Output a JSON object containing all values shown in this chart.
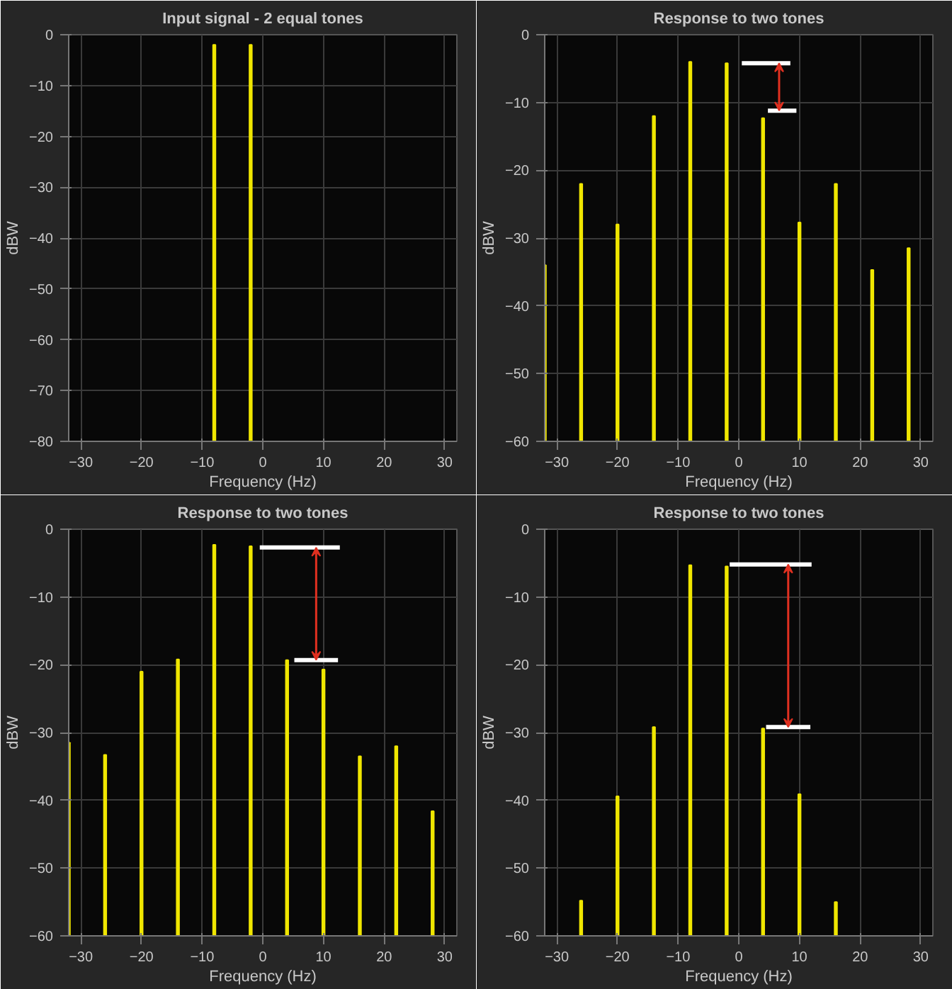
{
  "chart_data": [
    {
      "type": "bar",
      "title": "Input signal - 2 equal tones",
      "xlabel": "Frequency (Hz)",
      "ylabel": "dBW",
      "xlim": [
        -32,
        32
      ],
      "ylim": [
        -80,
        0
      ],
      "xticks": [
        -30,
        -20,
        -10,
        0,
        10,
        20,
        30
      ],
      "yticks": [
        -80,
        -70,
        -60,
        -50,
        -40,
        -30,
        -20,
        -10,
        0
      ],
      "grid": true,
      "series": [
        {
          "color": "#f0e600",
          "x": [
            -8,
            -2
          ],
          "base": [
            -80,
            -80
          ],
          "values": [
            78,
            78
          ]
        }
      ]
    },
    {
      "type": "bar",
      "title": "Response to two tones",
      "xlabel": "Frequency (Hz)",
      "ylabel": "dBW",
      "xlim": [
        -32,
        32
      ],
      "ylim": [
        -60,
        0
      ],
      "xticks": [
        -30,
        -20,
        -10,
        0,
        10,
        20,
        30
      ],
      "yticks": [
        -60,
        -50,
        -40,
        -30,
        -20,
        -10,
        0
      ],
      "grid": true,
      "series": [
        {
          "color": "#f0e600",
          "x": [
            -32,
            -26,
            -20,
            -14,
            -8,
            -2,
            4,
            10,
            16,
            22,
            28
          ],
          "base": [
            -60,
            -60,
            -60,
            -60,
            -60,
            -60,
            -60,
            -60,
            -60,
            -60,
            -60
          ],
          "values": [
            26,
            38,
            32,
            48,
            56,
            55.8,
            47.7,
            32.3,
            38,
            25.3,
            28.5
          ]
        },
        {
          "type": "line",
          "color": "#ffffff",
          "x": [
            0.5,
            8.5
          ],
          "values": [
            -4.2,
            -4.2
          ]
        },
        {
          "type": "line",
          "color": "#ffffff",
          "x": [
            4.8,
            9.5
          ],
          "values": [
            -11.2,
            -11.2
          ]
        }
      ]
    },
    {
      "type": "bar",
      "title": "Response to two tones",
      "xlabel": "Frequency (Hz)",
      "ylabel": "dBW",
      "xlim": [
        -32,
        32
      ],
      "ylim": [
        -60,
        0
      ],
      "xticks": [
        -30,
        -20,
        -10,
        0,
        10,
        20,
        30
      ],
      "yticks": [
        -60,
        -50,
        -40,
        -30,
        -20,
        -10,
        0
      ],
      "grid": true,
      "series": [
        {
          "color": "#f0e600",
          "x": [
            -32,
            -26,
            -20,
            -14,
            -8,
            -2,
            4,
            10,
            16,
            22,
            28
          ],
          "base": [
            -60,
            -60,
            -60,
            -60,
            -60,
            -60,
            -60,
            -60,
            -60,
            -60,
            -60
          ],
          "values": [
            28.5,
            26.7,
            39,
            40.8,
            57.7,
            57.5,
            40.7,
            39.3,
            26.5,
            28,
            18.4
          ]
        },
        {
          "type": "line",
          "color": "#ffffff",
          "x": [
            -0.5,
            12.7
          ],
          "values": [
            -2.7,
            -2.7
          ]
        },
        {
          "type": "line",
          "color": "#ffffff",
          "x": [
            5.2,
            12.4
          ],
          "values": [
            -19.3,
            -19.3
          ]
        }
      ]
    },
    {
      "type": "bar",
      "title": "Response to two tones",
      "xlabel": "Frequency (Hz)",
      "ylabel": "dBW",
      "xlim": [
        -32,
        32
      ],
      "ylim": [
        -60,
        0
      ],
      "xticks": [
        -30,
        -20,
        -10,
        0,
        10,
        20,
        30
      ],
      "yticks": [
        -60,
        -50,
        -40,
        -30,
        -20,
        -10,
        0
      ],
      "grid": true,
      "series": [
        {
          "color": "#f0e600",
          "x": [
            -26,
            -20,
            -14,
            -8,
            -2,
            4,
            10,
            16
          ],
          "base": [
            -60,
            -60,
            -60,
            -60,
            -60,
            -60,
            -60,
            -60
          ],
          "values": [
            5.2,
            20.6,
            30.8,
            54.7,
            54.5,
            30.6,
            20.9,
            5
          ]
        },
        {
          "type": "line",
          "color": "#ffffff",
          "x": [
            -1.5,
            12
          ],
          "values": [
            -5.2,
            -5.2
          ]
        },
        {
          "type": "line",
          "color": "#ffffff",
          "x": [
            4.5,
            11.8
          ],
          "values": [
            -29.2,
            -29.2
          ]
        }
      ]
    }
  ]
}
